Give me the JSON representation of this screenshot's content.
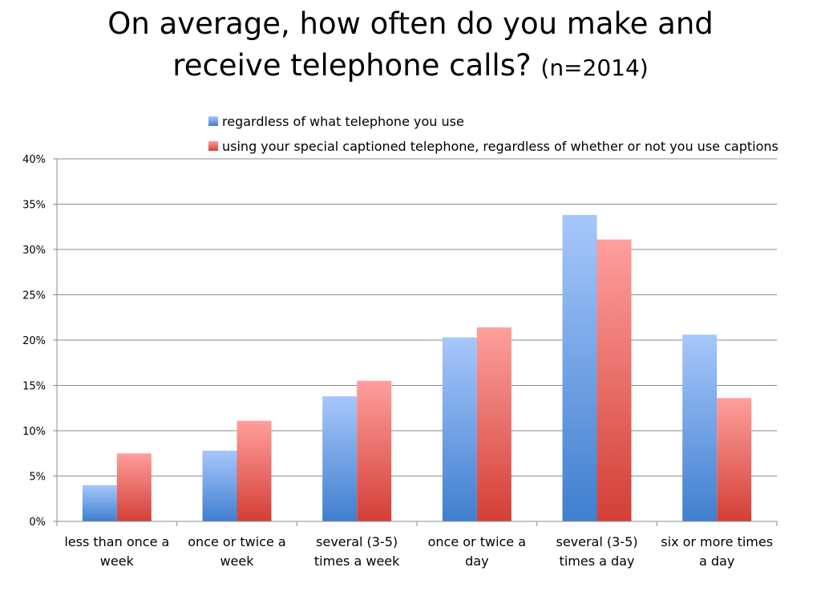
{
  "slide": {
    "title_line1": "On average, how often do you make and",
    "title_line2": "receive telephone calls?",
    "title_suffix": "(n=2014)"
  },
  "chart_data": {
    "type": "bar",
    "categories": [
      "less than once a week",
      "once or twice a week",
      "several (3-5) times a week",
      "once or twice a day",
      "several (3-5) times a day",
      "six or more times a day"
    ],
    "category_label_lines": [
      [
        "less than once a",
        "week"
      ],
      [
        "once or twice a",
        "week"
      ],
      [
        "several (3-5)",
        "times a week"
      ],
      [
        "once or twice a",
        "day"
      ],
      [
        "several (3-5)",
        "times a day"
      ],
      [
        "six or more times",
        "a day"
      ]
    ],
    "series": [
      {
        "name": "regardless of what telephone you use",
        "values": [
          4,
          7.8,
          13.8,
          20.3,
          33.8,
          20.6
        ],
        "color_top": "#a7c7fb",
        "color_bottom": "#3f7fcf"
      },
      {
        "name": "using your special captioned telephone, regardless of whether or not you use captions",
        "values": [
          7.5,
          11.1,
          15.5,
          21.4,
          31.1,
          13.6
        ],
        "color_top": "#ff9f9c",
        "color_bottom": "#d23f36"
      }
    ],
    "yticks": [
      "0%",
      "5%",
      "10%",
      "15%",
      "20%",
      "25%",
      "30%",
      "35%",
      "40%"
    ],
    "ylim": [
      0,
      40
    ],
    "grid": true,
    "legend_position": "top-right"
  }
}
